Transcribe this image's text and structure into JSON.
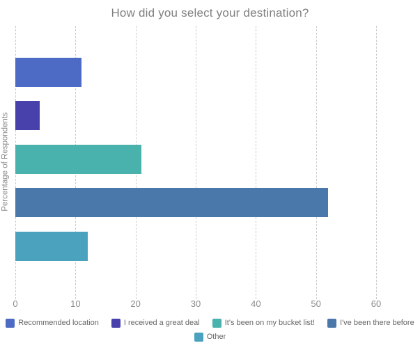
{
  "chart_data": {
    "type": "bar",
    "orientation": "horizontal",
    "title": "How did you select your destination?",
    "ylabel": "Percentage of Respondents",
    "xlabel": "",
    "categories": [
      "Recommended location",
      "I received a great deal",
      "It's been on my bucket list!",
      "I've been there before",
      "Other"
    ],
    "values": [
      11,
      4,
      21,
      52,
      12
    ],
    "colors": [
      "#4d6bc4",
      "#4840ab",
      "#49b2ac",
      "#4a78ab",
      "#4aa2bf"
    ],
    "xlim": [
      0,
      60
    ],
    "xticks": [
      0,
      10,
      20,
      30,
      40,
      50,
      60
    ],
    "grid": "vertical-dashed",
    "legend_position": "bottom",
    "legend_rows": [
      [
        "Recommended location",
        "I received a great deal",
        "It's been on my bucket list!",
        "I've been there before"
      ],
      [
        "Other"
      ]
    ]
  },
  "style": {
    "title_color": "#7f7f7f",
    "axis_text_color": "#8c8c8c",
    "legend_text_color": "#666666",
    "gridline_color": "#cdcdcd",
    "background": "#ffffff"
  }
}
